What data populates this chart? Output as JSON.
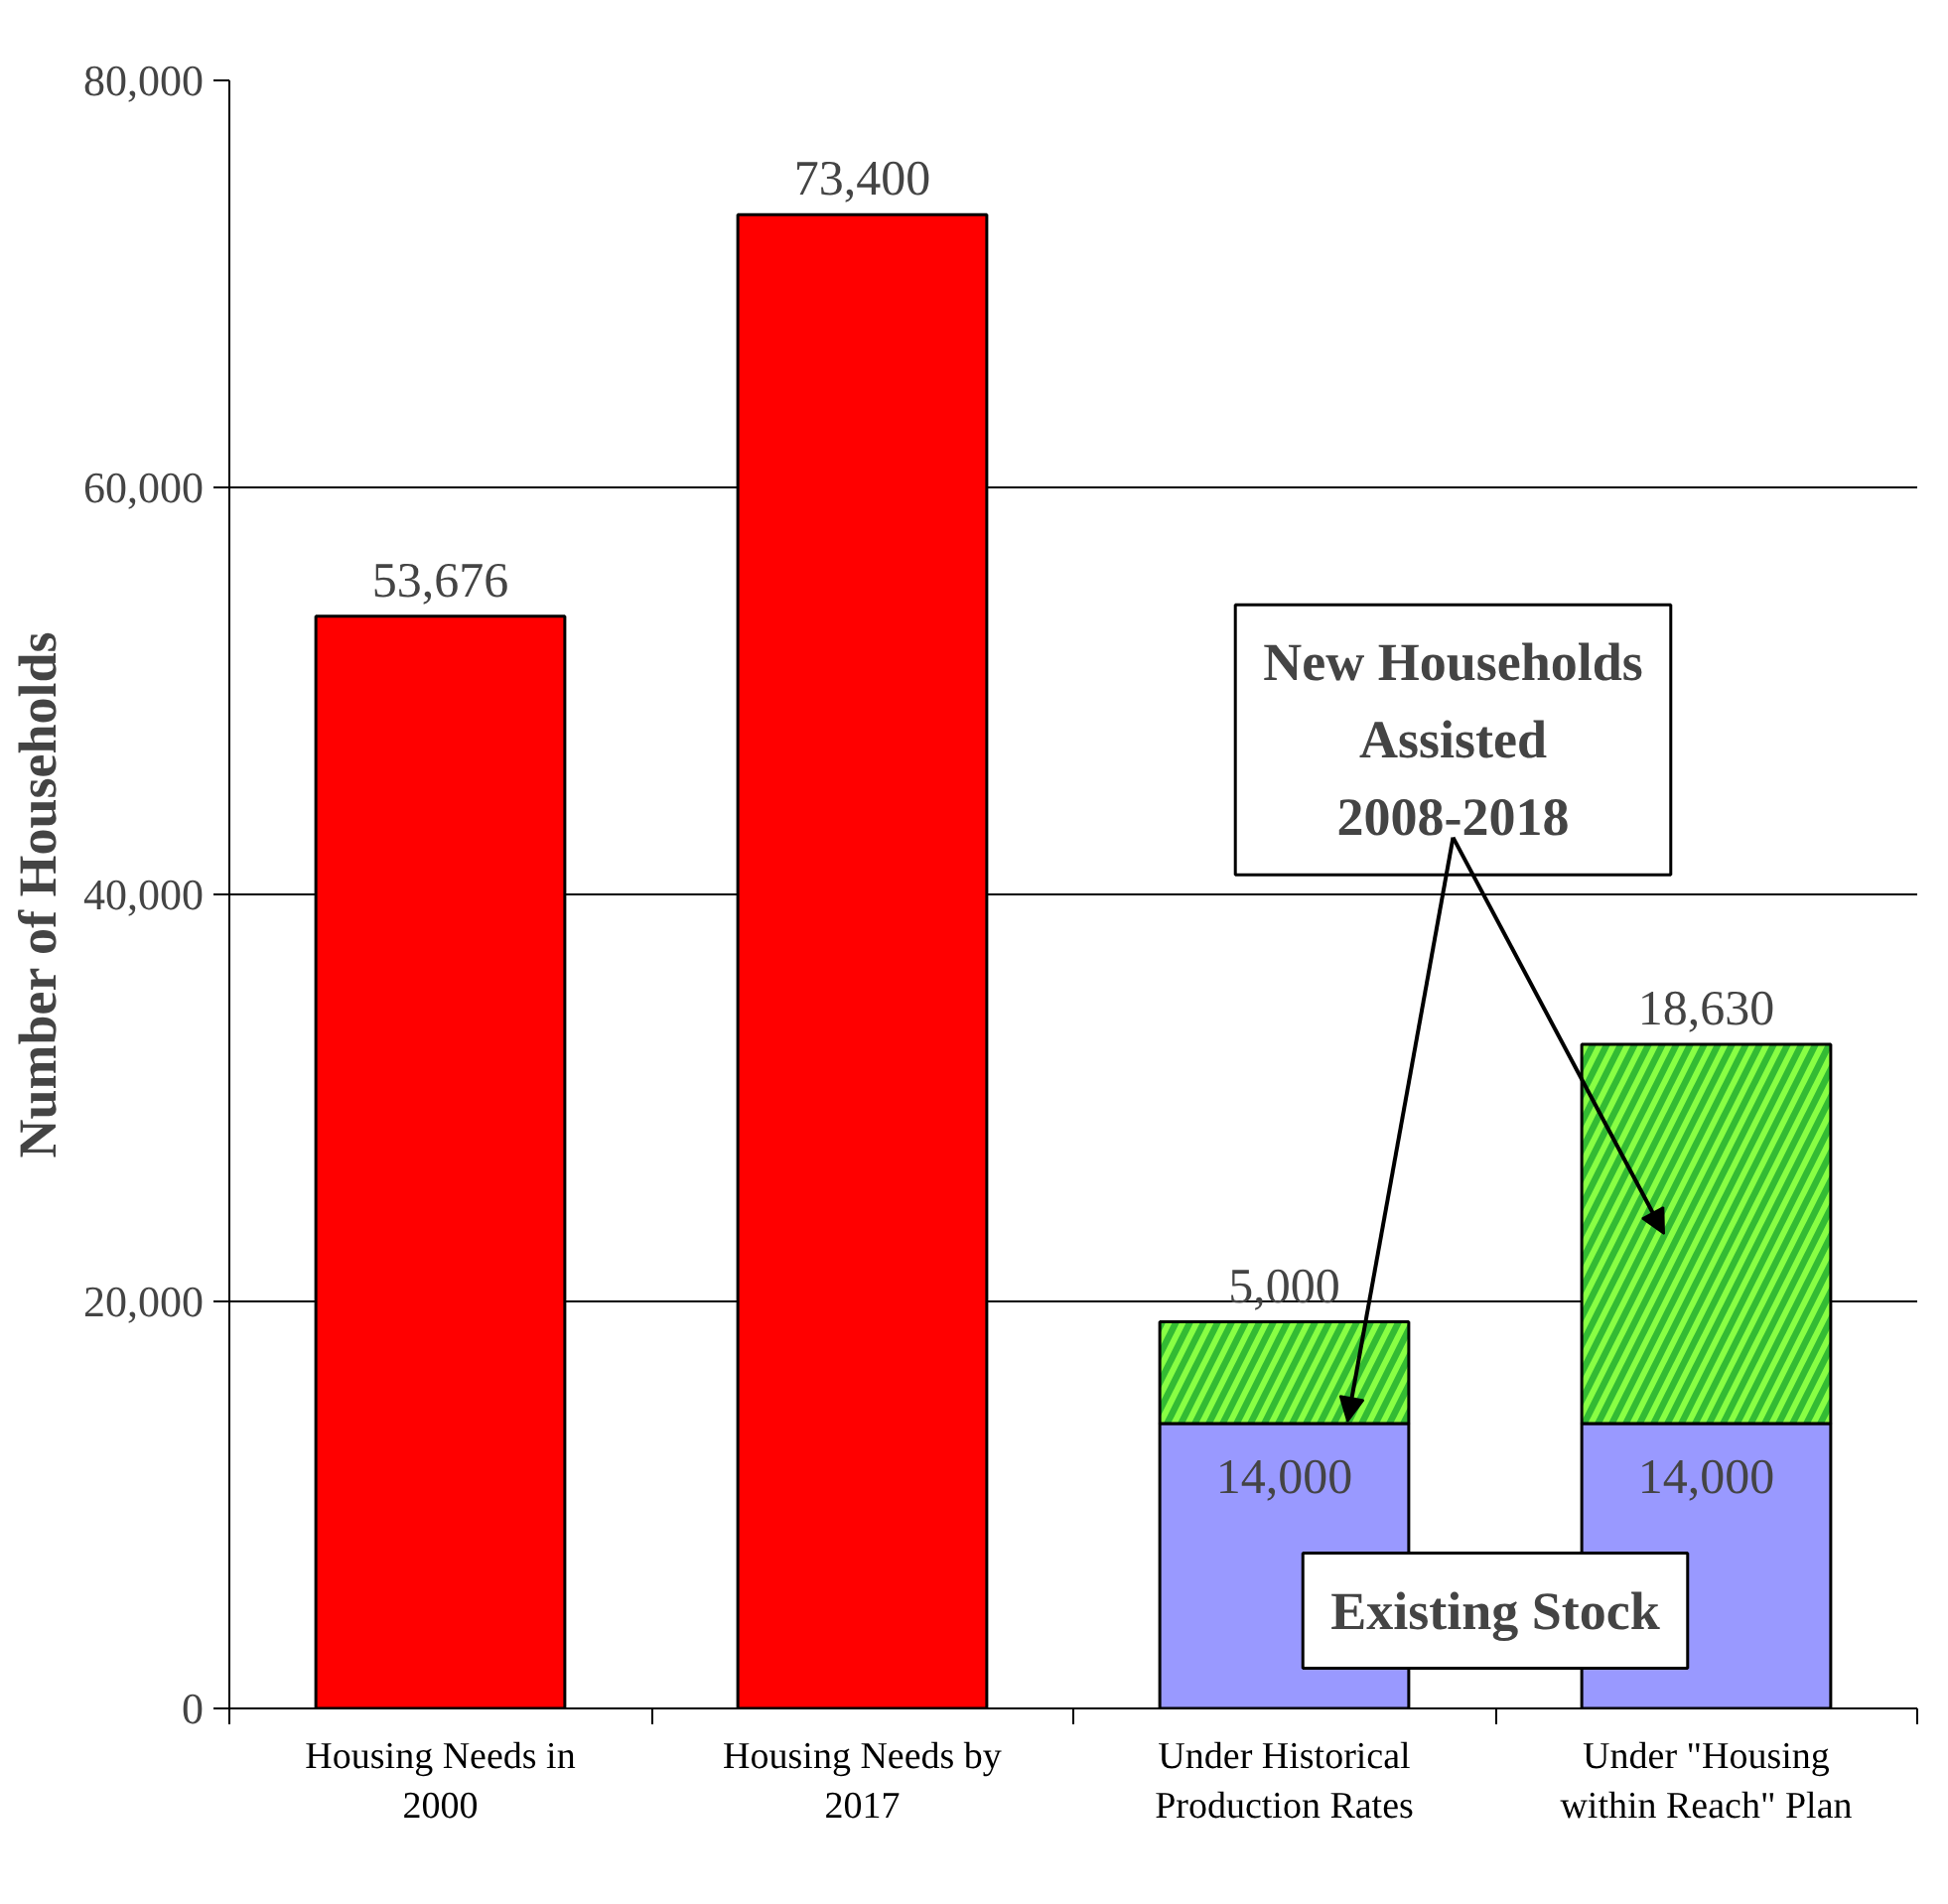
{
  "chart_data": {
    "type": "bar",
    "stacked": true,
    "ylabel": "Number of Households",
    "categories": [
      "Housing Needs in 2000",
      "Housing Needs by 2017",
      "Under Historical Production Rates",
      "Under \"Housing within Reach\" Plan"
    ],
    "series": [
      {
        "color": "#ff0000",
        "values": [
          53676,
          73400,
          null,
          null
        ],
        "value_labels": [
          "53,676",
          "73,400",
          null,
          null
        ]
      },
      {
        "name": "Existing Stock",
        "color": "#9999ff",
        "values": [
          null,
          null,
          14000,
          14000
        ],
        "value_labels": [
          null,
          null,
          "14,000",
          "14,000"
        ]
      },
      {
        "name": "New Households Assisted 2008-2018",
        "color": "#33bb33",
        "values": [
          null,
          null,
          5000,
          18630
        ],
        "value_labels": [
          null,
          null,
          "5,000",
          "18,630"
        ]
      }
    ],
    "ylim": [
      0,
      80000
    ],
    "yticks": [
      {
        "value": 0,
        "label": "0"
      },
      {
        "value": 20000,
        "label": "20,000"
      },
      {
        "value": 40000,
        "label": "40,000"
      },
      {
        "value": 60000,
        "label": "60,000"
      },
      {
        "value": 80000,
        "label": "80,000"
      }
    ],
    "grid": "y"
  }
}
